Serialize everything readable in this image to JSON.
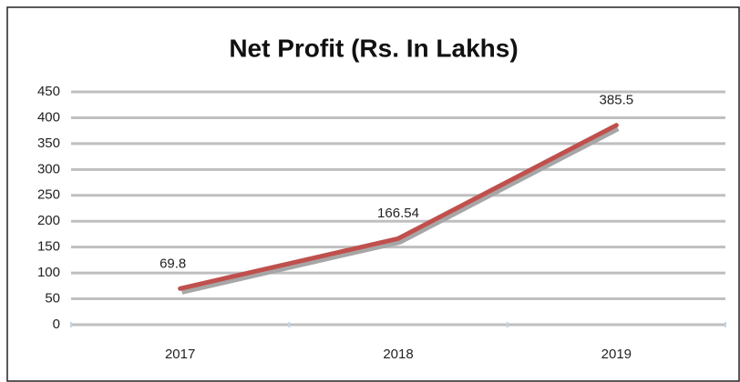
{
  "chart_data": {
    "type": "line",
    "title": "Net Profit (Rs. In Lakhs)",
    "categories": [
      "2017",
      "2018",
      "2019"
    ],
    "values": [
      69.8,
      166.54,
      385.5
    ],
    "color": "#c0504d",
    "ylim": [
      0,
      450
    ],
    "yticks": [
      0,
      50,
      100,
      150,
      200,
      250,
      300,
      350,
      400,
      450
    ],
    "grid": true,
    "data_labels": true
  }
}
